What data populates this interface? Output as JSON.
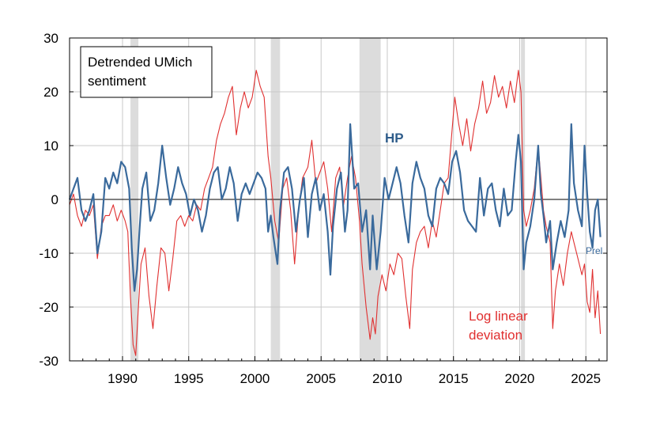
{
  "chart_data": {
    "type": "line",
    "title_box": [
      "Detrended UMich",
      "sentiment"
    ],
    "xlim": [
      1986.0,
      2026.6
    ],
    "ylim": [
      -30,
      30
    ],
    "x_ticks": [
      1990,
      1995,
      2000,
      2005,
      2010,
      2015,
      2020,
      2025
    ],
    "x_tick_labels": [
      "1990",
      "1995",
      "2000",
      "2005",
      "2010",
      "2015",
      "2020",
      "2025"
    ],
    "y_ticks": [
      -30,
      -20,
      -10,
      0,
      10,
      20,
      30
    ],
    "y_tick_labels": [
      "-30",
      "-20",
      "-10",
      "0",
      "10",
      "20",
      "30"
    ],
    "recessions": [
      [
        1990.6,
        1991.2
      ],
      [
        2001.2,
        2001.9
      ],
      [
        2007.9,
        2009.5
      ],
      [
        2020.1,
        2020.4
      ]
    ],
    "annotations": {
      "hp_label": "HP",
      "prel_label": "Prel",
      "loglin_label_line1": "Log linear",
      "loglin_label_line2": "deviation"
    },
    "series": [
      {
        "name": "HP",
        "color": "#3a6a9c",
        "points": [
          [
            1986.0,
            0
          ],
          [
            1986.3,
            2
          ],
          [
            1986.6,
            4
          ],
          [
            1986.9,
            -2
          ],
          [
            1987.2,
            -4
          ],
          [
            1987.5,
            -2
          ],
          [
            1987.8,
            1
          ],
          [
            1988.1,
            -10
          ],
          [
            1988.4,
            -6
          ],
          [
            1988.7,
            4
          ],
          [
            1989.0,
            2
          ],
          [
            1989.3,
            5
          ],
          [
            1989.6,
            3
          ],
          [
            1989.9,
            7
          ],
          [
            1990.2,
            6
          ],
          [
            1990.5,
            2
          ],
          [
            1990.7,
            -9
          ],
          [
            1990.9,
            -17
          ],
          [
            1991.1,
            -13
          ],
          [
            1991.3,
            -5
          ],
          [
            1991.5,
            2
          ],
          [
            1991.8,
            5
          ],
          [
            1992.1,
            -4
          ],
          [
            1992.4,
            -2
          ],
          [
            1992.7,
            3
          ],
          [
            1993.0,
            10
          ],
          [
            1993.3,
            4
          ],
          [
            1993.6,
            -1
          ],
          [
            1993.9,
            2
          ],
          [
            1994.2,
            6
          ],
          [
            1994.5,
            3
          ],
          [
            1994.8,
            1
          ],
          [
            1995.1,
            -3
          ],
          [
            1995.4,
            0
          ],
          [
            1995.7,
            -2
          ],
          [
            1996.0,
            -6
          ],
          [
            1996.3,
            -3
          ],
          [
            1996.6,
            2
          ],
          [
            1996.9,
            5
          ],
          [
            1997.2,
            6
          ],
          [
            1997.5,
            0
          ],
          [
            1997.8,
            2
          ],
          [
            1998.1,
            6
          ],
          [
            1998.4,
            3
          ],
          [
            1998.7,
            -4
          ],
          [
            1999.0,
            1
          ],
          [
            1999.3,
            3
          ],
          [
            1999.6,
            1
          ],
          [
            1999.9,
            3
          ],
          [
            2000.2,
            5
          ],
          [
            2000.5,
            4
          ],
          [
            2000.8,
            2
          ],
          [
            2001.0,
            -6
          ],
          [
            2001.2,
            -3
          ],
          [
            2001.4,
            -7
          ],
          [
            2001.7,
            -12
          ],
          [
            2001.9,
            -2
          ],
          [
            2002.2,
            5
          ],
          [
            2002.5,
            6
          ],
          [
            2002.8,
            2
          ],
          [
            2003.1,
            -6
          ],
          [
            2003.4,
            0
          ],
          [
            2003.7,
            4
          ],
          [
            2004.0,
            -7
          ],
          [
            2004.3,
            1
          ],
          [
            2004.6,
            4
          ],
          [
            2004.9,
            -2
          ],
          [
            2005.2,
            1
          ],
          [
            2005.5,
            -6
          ],
          [
            2005.7,
            -14
          ],
          [
            2005.9,
            -5
          ],
          [
            2006.2,
            2
          ],
          [
            2006.5,
            5
          ],
          [
            2006.8,
            -6
          ],
          [
            2007.0,
            -2
          ],
          [
            2007.2,
            14
          ],
          [
            2007.5,
            2
          ],
          [
            2007.8,
            3
          ],
          [
            2008.1,
            -6
          ],
          [
            2008.4,
            -2
          ],
          [
            2008.7,
            -13
          ],
          [
            2008.9,
            -3
          ],
          [
            2009.2,
            -13
          ],
          [
            2009.5,
            -6
          ],
          [
            2009.8,
            4
          ],
          [
            2010.1,
            0
          ],
          [
            2010.4,
            3
          ],
          [
            2010.7,
            6
          ],
          [
            2011.0,
            3
          ],
          [
            2011.3,
            -3
          ],
          [
            2011.6,
            -8
          ],
          [
            2011.9,
            3
          ],
          [
            2012.2,
            7
          ],
          [
            2012.5,
            4
          ],
          [
            2012.8,
            2
          ],
          [
            2013.1,
            -3
          ],
          [
            2013.4,
            -5
          ],
          [
            2013.7,
            2
          ],
          [
            2014.0,
            4
          ],
          [
            2014.3,
            3
          ],
          [
            2014.6,
            1
          ],
          [
            2014.9,
            7
          ],
          [
            2015.2,
            9
          ],
          [
            2015.5,
            5
          ],
          [
            2015.8,
            -2
          ],
          [
            2016.1,
            -4
          ],
          [
            2016.4,
            -5
          ],
          [
            2016.7,
            -6
          ],
          [
            2017.0,
            4
          ],
          [
            2017.3,
            -3
          ],
          [
            2017.6,
            2
          ],
          [
            2017.9,
            3
          ],
          [
            2018.2,
            -2
          ],
          [
            2018.5,
            -5
          ],
          [
            2018.8,
            2
          ],
          [
            2019.1,
            -3
          ],
          [
            2019.4,
            -2
          ],
          [
            2019.7,
            7
          ],
          [
            2019.9,
            12
          ],
          [
            2020.1,
            7
          ],
          [
            2020.3,
            -13
          ],
          [
            2020.5,
            -8
          ],
          [
            2020.8,
            -5
          ],
          [
            2021.1,
            0
          ],
          [
            2021.4,
            10
          ],
          [
            2021.6,
            1
          ],
          [
            2021.8,
            -3
          ],
          [
            2022.0,
            -8
          ],
          [
            2022.3,
            -4
          ],
          [
            2022.5,
            -13
          ],
          [
            2022.8,
            -8
          ],
          [
            2023.1,
            -4
          ],
          [
            2023.4,
            -7
          ],
          [
            2023.7,
            -2
          ],
          [
            2023.9,
            14
          ],
          [
            2024.1,
            3
          ],
          [
            2024.4,
            -2
          ],
          [
            2024.7,
            -5
          ],
          [
            2024.9,
            10
          ],
          [
            2025.1,
            1
          ],
          [
            2025.3,
            -6
          ],
          [
            2025.5,
            -9
          ],
          [
            2025.7,
            -2
          ],
          [
            2025.9,
            0
          ],
          [
            2026.1,
            -7
          ]
        ]
      },
      {
        "name": "Log linear deviation",
        "color": "#e03030",
        "points": [
          [
            1986.0,
            -1
          ],
          [
            1986.3,
            1
          ],
          [
            1986.6,
            -3
          ],
          [
            1986.9,
            -5
          ],
          [
            1987.2,
            -2
          ],
          [
            1987.5,
            -3
          ],
          [
            1987.8,
            -1
          ],
          [
            1988.1,
            -11
          ],
          [
            1988.4,
            -5
          ],
          [
            1988.7,
            -3
          ],
          [
            1989.0,
            -3
          ],
          [
            1989.3,
            -1
          ],
          [
            1989.6,
            -4
          ],
          [
            1989.9,
            -2
          ],
          [
            1990.2,
            -4
          ],
          [
            1990.4,
            -6
          ],
          [
            1990.6,
            -18
          ],
          [
            1990.8,
            -27
          ],
          [
            1991.0,
            -29
          ],
          [
            1991.2,
            -20
          ],
          [
            1991.4,
            -12
          ],
          [
            1991.7,
            -9
          ],
          [
            1992.0,
            -18
          ],
          [
            1992.3,
            -24
          ],
          [
            1992.6,
            -16
          ],
          [
            1992.9,
            -9
          ],
          [
            1993.2,
            -10
          ],
          [
            1993.5,
            -17
          ],
          [
            1993.8,
            -11
          ],
          [
            1994.1,
            -4
          ],
          [
            1994.4,
            -3
          ],
          [
            1994.7,
            -5
          ],
          [
            1995.0,
            -3
          ],
          [
            1995.3,
            -4
          ],
          [
            1995.6,
            -1
          ],
          [
            1995.9,
            -2
          ],
          [
            1996.2,
            2
          ],
          [
            1996.5,
            4
          ],
          [
            1996.8,
            6
          ],
          [
            1997.1,
            11
          ],
          [
            1997.4,
            14
          ],
          [
            1997.7,
            16
          ],
          [
            1998.0,
            19
          ],
          [
            1998.3,
            21
          ],
          [
            1998.6,
            12
          ],
          [
            1998.9,
            17
          ],
          [
            1999.2,
            20
          ],
          [
            1999.5,
            17
          ],
          [
            1999.8,
            19
          ],
          [
            2000.1,
            24
          ],
          [
            2000.4,
            21
          ],
          [
            2000.7,
            19
          ],
          [
            2001.0,
            8
          ],
          [
            2001.2,
            4
          ],
          [
            2001.5,
            -4
          ],
          [
            2001.8,
            -8
          ],
          [
            2002.1,
            2
          ],
          [
            2002.4,
            4
          ],
          [
            2002.7,
            -2
          ],
          [
            2003.0,
            -12
          ],
          [
            2003.3,
            -2
          ],
          [
            2003.6,
            4
          ],
          [
            2004.0,
            6
          ],
          [
            2004.3,
            11
          ],
          [
            2004.6,
            3
          ],
          [
            2004.9,
            5
          ],
          [
            2005.2,
            7
          ],
          [
            2005.5,
            2
          ],
          [
            2005.8,
            -6
          ],
          [
            2006.1,
            4
          ],
          [
            2006.4,
            6
          ],
          [
            2006.7,
            -1
          ],
          [
            2007.0,
            4
          ],
          [
            2007.3,
            8
          ],
          [
            2007.6,
            4
          ],
          [
            2007.9,
            -4
          ],
          [
            2008.1,
            -12
          ],
          [
            2008.4,
            -20
          ],
          [
            2008.7,
            -26
          ],
          [
            2008.9,
            -22
          ],
          [
            2009.1,
            -25
          ],
          [
            2009.3,
            -18
          ],
          [
            2009.6,
            -14
          ],
          [
            2009.9,
            -17
          ],
          [
            2010.2,
            -12
          ],
          [
            2010.5,
            -14
          ],
          [
            2010.8,
            -10
          ],
          [
            2011.1,
            -11
          ],
          [
            2011.4,
            -18
          ],
          [
            2011.7,
            -24
          ],
          [
            2011.9,
            -13
          ],
          [
            2012.2,
            -8
          ],
          [
            2012.5,
            -6
          ],
          [
            2012.8,
            -5
          ],
          [
            2013.1,
            -9
          ],
          [
            2013.4,
            -4
          ],
          [
            2013.7,
            -7
          ],
          [
            2014.0,
            -2
          ],
          [
            2014.3,
            3
          ],
          [
            2014.6,
            4
          ],
          [
            2014.9,
            13
          ],
          [
            2015.1,
            19
          ],
          [
            2015.4,
            14
          ],
          [
            2015.7,
            10
          ],
          [
            2016.0,
            15
          ],
          [
            2016.3,
            9
          ],
          [
            2016.6,
            14
          ],
          [
            2016.9,
            17
          ],
          [
            2017.2,
            22
          ],
          [
            2017.5,
            16
          ],
          [
            2017.8,
            18
          ],
          [
            2018.1,
            23
          ],
          [
            2018.4,
            19
          ],
          [
            2018.7,
            21
          ],
          [
            2019.0,
            17
          ],
          [
            2019.3,
            22
          ],
          [
            2019.6,
            18
          ],
          [
            2019.9,
            24
          ],
          [
            2020.1,
            20
          ],
          [
            2020.3,
            -2
          ],
          [
            2020.5,
            -5
          ],
          [
            2020.8,
            -2
          ],
          [
            2021.1,
            2
          ],
          [
            2021.4,
            10
          ],
          [
            2021.6,
            4
          ],
          [
            2021.8,
            -2
          ],
          [
            2022.0,
            -5
          ],
          [
            2022.3,
            -8
          ],
          [
            2022.5,
            -24
          ],
          [
            2022.7,
            -17
          ],
          [
            2023.0,
            -12
          ],
          [
            2023.3,
            -16
          ],
          [
            2023.6,
            -10
          ],
          [
            2023.9,
            -6
          ],
          [
            2024.1,
            -8
          ],
          [
            2024.4,
            -11
          ],
          [
            2024.7,
            -14
          ],
          [
            2024.9,
            -12
          ],
          [
            2025.1,
            -19
          ],
          [
            2025.3,
            -21
          ],
          [
            2025.5,
            -13
          ],
          [
            2025.7,
            -22
          ],
          [
            2025.9,
            -17
          ],
          [
            2026.1,
            -25
          ]
        ]
      }
    ]
  }
}
